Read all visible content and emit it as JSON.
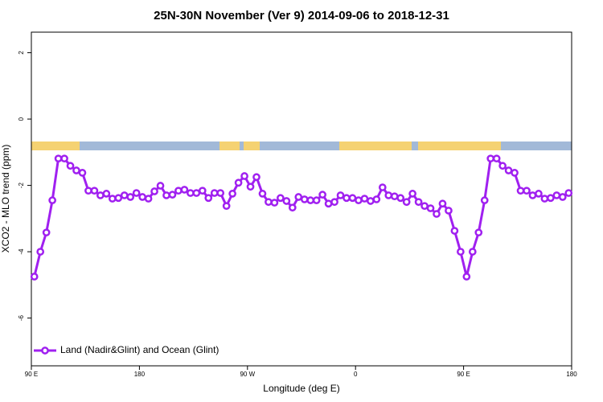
{
  "chart_data": {
    "type": "line",
    "title": "25N-30N November (Ver 9)   2014-09-06 to 2018-12-31",
    "xlabel": "Longitude (deg E)",
    "ylabel": "XCO2 - MLO trend (ppm)",
    "xlim": [
      90,
      540
    ],
    "ylim": [
      -7.44,
      2.62
    ],
    "xticks": [
      {
        "value": 90,
        "label": "90 E"
      },
      180,
      {
        "value": 270,
        "label": "90 W"
      },
      {
        "value": 360,
        "label": "0"
      },
      {
        "value": 450,
        "label": "90 E"
      },
      {
        "value": 540,
        "label": "180"
      }
    ],
    "yticks": [
      2,
      0,
      -2,
      -4,
      -6
    ],
    "legend": "bottom-left",
    "x": [
      92.5,
      97.5,
      102.5,
      107.5,
      112.5,
      117.5,
      122.5,
      127.5,
      132.5,
      137.5,
      142.5,
      147.5,
      152.5,
      157.5,
      162.5,
      167.5,
      172.5,
      177.5,
      182.5,
      187.5,
      192.5,
      197.5,
      202.5,
      207.5,
      212.5,
      217.5,
      222.5,
      227.5,
      232.5,
      237.5,
      242.5,
      247.5,
      252.5,
      257.5,
      262.5,
      267.5,
      272.5,
      277.5,
      282.5,
      287.5,
      292.5,
      297.5,
      302.5,
      307.5,
      312.5,
      317.5,
      322.5,
      327.5,
      332.5,
      337.5,
      342.5,
      347.5,
      352.5,
      357.5,
      362.5,
      367.5,
      372.5,
      377.5,
      382.5,
      387.5,
      392.5,
      397.5,
      402.5,
      407.5,
      412.5,
      417.5,
      422.5,
      427.5,
      432.5,
      437.5,
      442.5,
      447.5,
      452.5,
      457.5,
      462.5,
      467.5,
      472.5,
      477.5,
      482.5,
      487.5,
      492.5,
      497.5,
      502.5,
      507.5,
      512.5,
      517.5,
      522.5,
      527.5,
      532.5,
      537.5
    ],
    "series": [
      {
        "name": "Land (Nadir&Glint) and Ocean (Glint)",
        "color": "#a020f0",
        "values": [
          -4.75,
          -4.0,
          -3.42,
          -2.45,
          -1.19,
          -1.19,
          -1.41,
          -1.55,
          -1.62,
          -2.16,
          -2.16,
          -2.3,
          -2.25,
          -2.4,
          -2.38,
          -2.3,
          -2.35,
          -2.23,
          -2.35,
          -2.4,
          -2.18,
          -2.01,
          -2.3,
          -2.28,
          -2.16,
          -2.13,
          -2.23,
          -2.23,
          -2.16,
          -2.38,
          -2.23,
          -2.23,
          -2.62,
          -2.25,
          -1.92,
          -1.72,
          -2.04,
          -1.75,
          -2.25,
          -2.5,
          -2.52,
          -2.38,
          -2.47,
          -2.67,
          -2.35,
          -2.42,
          -2.45,
          -2.45,
          -2.28,
          -2.55,
          -2.5,
          -2.3,
          -2.38,
          -2.38,
          -2.45,
          -2.4,
          -2.47,
          -2.42,
          -2.06,
          -2.3,
          -2.33,
          -2.38,
          -2.5,
          -2.25,
          -2.5,
          -2.62,
          -2.69,
          -2.86,
          -2.55,
          -2.76,
          -3.37,
          -4.0,
          -4.75,
          -4.0,
          -3.42,
          -2.45,
          -1.19,
          -1.19,
          -1.41,
          -1.55,
          -1.62,
          -2.16,
          -2.16,
          -2.3,
          -2.25,
          -2.4,
          -2.38,
          -2.3,
          -2.35,
          -2.23
        ]
      }
    ]
  }
}
